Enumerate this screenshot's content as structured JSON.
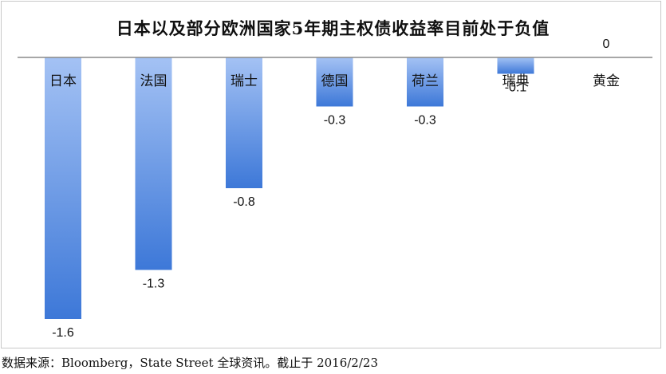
{
  "chart_data": {
    "type": "bar",
    "title": "日本以及部分欧洲国家5年期主权债收益率目前处于负值",
    "categories": [
      "日本",
      "法国",
      "瑞士",
      "德国",
      "荷兰",
      "瑞典",
      "黄金"
    ],
    "values": [
      -1.6,
      -1.3,
      -0.8,
      -0.3,
      -0.3,
      -0.1,
      0
    ],
    "value_labels": [
      "-1.6",
      "-1.3",
      "-0.8",
      "-0.3",
      "-0.3",
      "-0.1",
      "0"
    ],
    "ylim": [
      -1.6,
      0
    ],
    "grid": false,
    "legend": "none",
    "bar_color_top": "#a4c2f4",
    "bar_color_bottom": "#3d78d8",
    "axis_color": "#8a8a8a"
  },
  "source": "数据来源：Bloomberg，State Street 全球资讯。截止于 2016/2/23"
}
